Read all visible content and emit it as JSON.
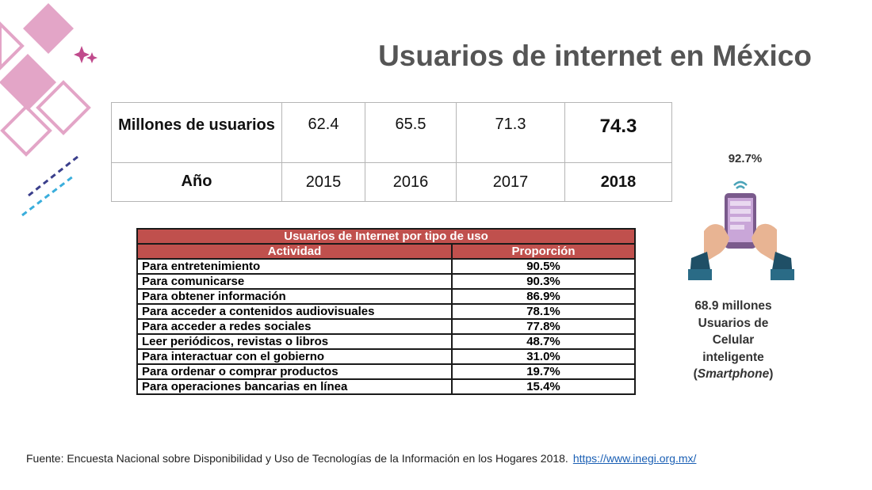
{
  "title": "Usuarios de internet en México",
  "users_table": {
    "row_users_label": "Millones de usuarios",
    "row_year_label": "Año",
    "users": [
      "62.4",
      "65.5",
      "71.3",
      "74.3"
    ],
    "years": [
      "2015",
      "2016",
      "2017",
      "2018"
    ]
  },
  "usage_table": {
    "title": "Usuarios de Internet por tipo de uso",
    "col_activity": "Actividad",
    "col_proportion": "Proporción",
    "rows": [
      {
        "activity": "Para entretenimiento",
        "proportion": "90.5%"
      },
      {
        "activity": "Para comunicarse",
        "proportion": "90.3%"
      },
      {
        "activity": "Para obtener información",
        "proportion": "86.9%"
      },
      {
        "activity": "Para acceder a contenidos audiovisuales",
        "proportion": "78.1%"
      },
      {
        "activity": "Para acceder a redes sociales",
        "proportion": "77.8%"
      },
      {
        "activity": "Leer periódicos, revistas o libros",
        "proportion": "48.7%"
      },
      {
        "activity": "Para interactuar con el gobierno",
        "proportion": "31.0%"
      },
      {
        "activity": "Para ordenar o comprar productos",
        "proportion": "19.7%"
      },
      {
        "activity": "Para operaciones bancarias en línea",
        "proportion": "15.4%"
      }
    ]
  },
  "smartphone": {
    "percent": "92.7%",
    "line1": "68.9 millones",
    "line2": "Usuarios de",
    "line3": "Celular",
    "line4": "inteligente",
    "paren_open": "(",
    "line5_italic": "Smartphone",
    "paren_close": ")"
  },
  "source": {
    "text": "Fuente: Encuesta Nacional sobre Disponibilidad y Uso de Tecnologías de la Información en los Hogares 2018.",
    "link": "https://www.inegi.org.mx/"
  },
  "colors": {
    "accent_pink": "#e3a5c7",
    "table_header_red": "#c0504d",
    "title_gray": "#555555"
  }
}
